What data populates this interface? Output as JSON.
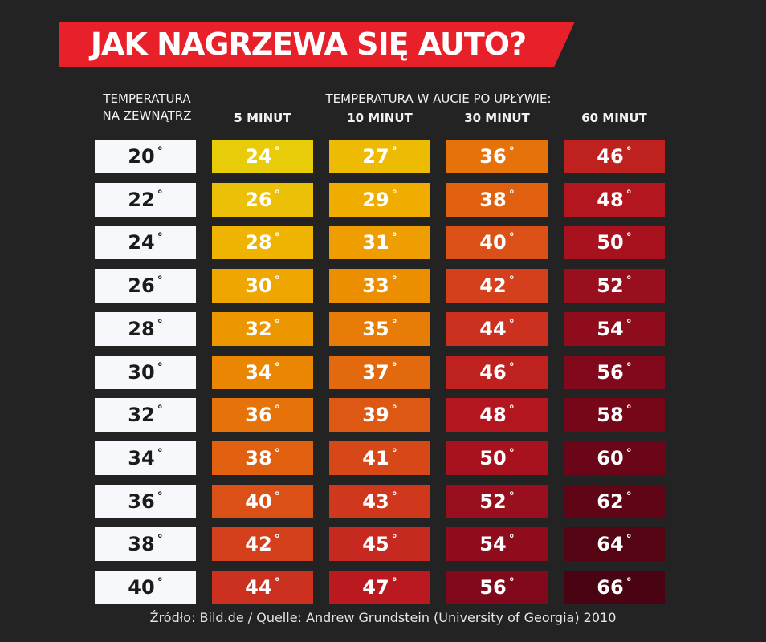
{
  "title": "JAK NAGRZEWA SIĘ AUTO?",
  "header": {
    "outside_line1": "TEMPERATURA",
    "outside_line2": "NA ZEWNĄTRZ",
    "inside_group": "TEMPERATURA W AUCIE PO UPŁYWIE:",
    "col_5": "5 MINUT",
    "col_10": "10 MINUT",
    "col_30": "30 MINUT",
    "col_60": "60 MINUT"
  },
  "degree_symbol": "°",
  "chart_data": {
    "type": "table",
    "title": "JAK NAGRZEWA SIĘ AUTO?",
    "columns": [
      "TEMPERATURA NA ZEWNĄTRZ",
      "5 MINUT",
      "10 MINUT",
      "30 MINUT",
      "60 MINUT"
    ],
    "rows": [
      [
        20,
        24,
        27,
        36,
        46
      ],
      [
        22,
        26,
        29,
        38,
        48
      ],
      [
        24,
        28,
        31,
        40,
        50
      ],
      [
        26,
        30,
        33,
        42,
        52
      ],
      [
        28,
        32,
        35,
        44,
        54
      ],
      [
        30,
        34,
        37,
        46,
        56
      ],
      [
        32,
        36,
        39,
        48,
        58
      ],
      [
        34,
        38,
        41,
        50,
        60
      ],
      [
        36,
        40,
        43,
        52,
        62
      ],
      [
        38,
        42,
        45,
        54,
        64
      ],
      [
        40,
        44,
        47,
        56,
        66
      ]
    ],
    "unit": "°"
  },
  "colors": {
    "background": "#232323",
    "banner": "#e8202a",
    "outside_cell": "#f7f8fb",
    "heat_scale": [
      "#e8cc0a",
      "#f0b000",
      "#eb8c00",
      "#e06010",
      "#d23b1e",
      "#b8171f",
      "#9a0f1e",
      "#7d081a",
      "#640517",
      "#4a0312"
    ]
  },
  "source": "Źródło: Bild.de / Quelle: Andrew Grundstein (University of Georgia) 2010"
}
